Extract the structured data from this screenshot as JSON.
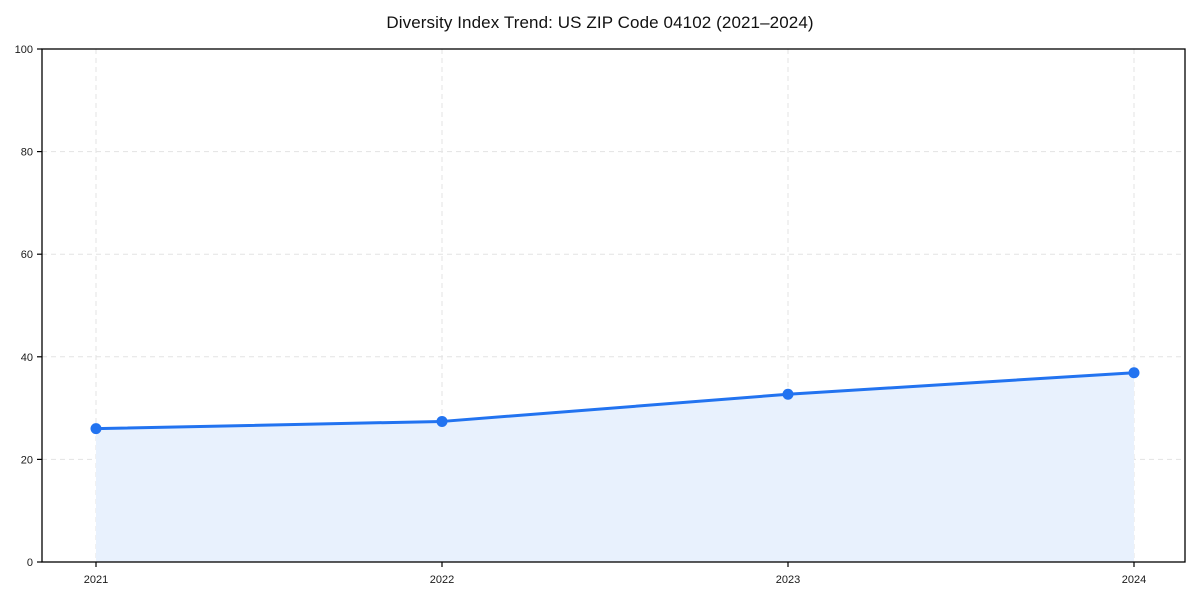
{
  "chart_data": {
    "type": "area",
    "title": "Diversity Index Trend: US ZIP Code 04102 (2021–2024)",
    "categories": [
      "2021",
      "2022",
      "2023",
      "2024"
    ],
    "series": [
      {
        "name": "Diversity Index",
        "values": [
          26.0,
          27.4,
          32.7,
          36.9
        ]
      }
    ],
    "xlabel": "",
    "ylabel": "",
    "ylim": [
      0,
      100
    ],
    "yticks": [
      0,
      20,
      40,
      60,
      80,
      100
    ],
    "grid": "dashed, both axes",
    "legend": "none",
    "colors": {
      "line": "#2273f0",
      "marker": "#2273f0",
      "area_fill": "#e8f1fd",
      "grid": "#e3e3e3",
      "axis": "#000000",
      "tick_text": "#1a1a1a",
      "background": "#ffffff"
    }
  }
}
